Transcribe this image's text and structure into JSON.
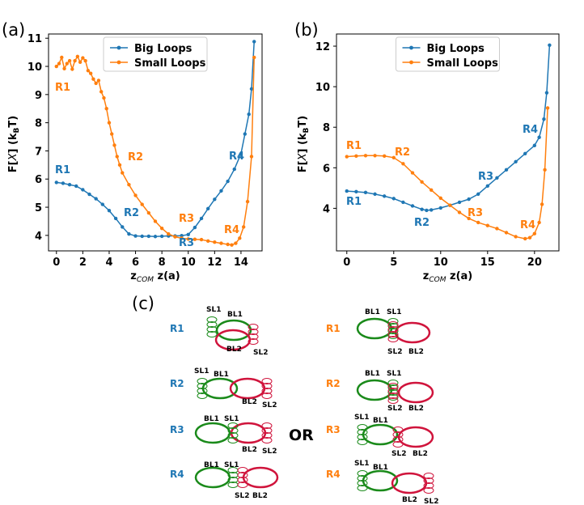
{
  "colors": {
    "big": "#1f77b4",
    "small": "#ff7f0e",
    "green": "#1a8a1a",
    "red": "#d0143c"
  },
  "legend": {
    "big": "Big Loops",
    "small": "Small Loops"
  },
  "panels": {
    "a": "(a)",
    "b": "(b)",
    "c": "(c)"
  },
  "or_label": "OR",
  "chart_data": [
    {
      "type": "line",
      "panel": "(a)",
      "xlabel": "z_COM z(a)",
      "ylabel": "F[X] (kBT)",
      "xlim": [
        -0.6,
        15.6
      ],
      "ylim": [
        3.45,
        11.15
      ],
      "xticks": [
        "0",
        "2",
        "4",
        "6",
        "8",
        "10",
        "12",
        "14"
      ],
      "yticks": [
        "4",
        "5",
        "6",
        "7",
        "8",
        "9",
        "10",
        "11"
      ],
      "series": [
        {
          "name": "Big Loops",
          "x": [
            0,
            0.5,
            1,
            1.5,
            2,
            2.5,
            3,
            3.5,
            4,
            4.5,
            5,
            5.5,
            6,
            6.5,
            7,
            7.5,
            8,
            8.5,
            9,
            9.5,
            10,
            10.5,
            11,
            11.5,
            12,
            12.5,
            13,
            13.5,
            14,
            14.3,
            14.6,
            14.8,
            15
          ],
          "y": [
            5.88,
            5.85,
            5.8,
            5.75,
            5.62,
            5.46,
            5.3,
            5.1,
            4.88,
            4.6,
            4.3,
            4.05,
            3.98,
            3.97,
            3.97,
            3.96,
            3.97,
            3.98,
            3.98,
            3.99,
            4.03,
            4.28,
            4.6,
            4.95,
            5.28,
            5.58,
            5.92,
            6.35,
            6.9,
            7.6,
            8.3,
            9.2,
            10.88
          ]
        },
        {
          "name": "Small Loops",
          "x": [
            0,
            0.2,
            0.4,
            0.6,
            0.8,
            1,
            1.2,
            1.4,
            1.6,
            1.8,
            2,
            2.2,
            2.4,
            2.6,
            2.8,
            3,
            3.2,
            3.4,
            3.6,
            3.8,
            4,
            4.2,
            4.4,
            4.6,
            4.8,
            5,
            5.5,
            6,
            6.5,
            7,
            7.5,
            8,
            8.5,
            9,
            9.5,
            10,
            10.5,
            11,
            11.5,
            12,
            12.5,
            13,
            13.3,
            13.6,
            13.9,
            14.2,
            14.5,
            14.8,
            15
          ],
          "y": [
            10.0,
            10.1,
            10.32,
            9.92,
            10.1,
            10.2,
            9.9,
            10.2,
            10.35,
            10.15,
            10.3,
            10.2,
            9.85,
            9.75,
            9.55,
            9.4,
            9.5,
            9.1,
            8.88,
            8.5,
            8.0,
            7.6,
            7.2,
            6.8,
            6.5,
            6.22,
            5.8,
            5.42,
            5.1,
            4.8,
            4.5,
            4.25,
            4.05,
            3.95,
            3.9,
            3.87,
            3.86,
            3.85,
            3.8,
            3.76,
            3.72,
            3.68,
            3.66,
            3.72,
            3.9,
            4.3,
            5.2,
            6.8,
            10.32
          ]
        }
      ],
      "annotations": [
        {
          "text": "R1",
          "series": "Big Loops"
        },
        {
          "text": "R2",
          "series": "Big Loops"
        },
        {
          "text": "R3",
          "series": "Big Loops"
        },
        {
          "text": "R4",
          "series": "Big Loops"
        },
        {
          "text": "R1",
          "series": "Small Loops"
        },
        {
          "text": "R2",
          "series": "Small Loops"
        },
        {
          "text": "R3",
          "series": "Small Loops"
        },
        {
          "text": "R4",
          "series": "Small Loops"
        }
      ],
      "legend": "top-center"
    },
    {
      "type": "line",
      "panel": "(b)",
      "xlabel": "z_COM z(a)",
      "ylabel": "F[X] (kBT)",
      "xlim": [
        -1.1,
        22.6
      ],
      "ylim": [
        1.9,
        12.6
      ],
      "xticks": [
        "0",
        "5",
        "10",
        "15",
        "20"
      ],
      "yticks": [
        "4",
        "6",
        "8",
        "10",
        "12"
      ],
      "series": [
        {
          "name": "Big Loops",
          "x": [
            0,
            1,
            2,
            3,
            4,
            5,
            6,
            7,
            8,
            8.5,
            9,
            10,
            11,
            12,
            13,
            14,
            15,
            16,
            17,
            18,
            19,
            20,
            20.5,
            21,
            21.3,
            21.6
          ],
          "y": [
            4.85,
            4.82,
            4.78,
            4.7,
            4.6,
            4.48,
            4.3,
            4.12,
            3.95,
            3.9,
            3.92,
            4.02,
            4.15,
            4.3,
            4.45,
            4.7,
            5.1,
            5.5,
            5.9,
            6.3,
            6.7,
            7.1,
            7.5,
            8.4,
            9.7,
            12.05
          ]
        },
        {
          "name": "Small Loops",
          "x": [
            0,
            1,
            2,
            3,
            4,
            5,
            6,
            7,
            8,
            9,
            10,
            11,
            12,
            13,
            14,
            15,
            16,
            17,
            18,
            19,
            19.5,
            20,
            20.5,
            20.8,
            21.1,
            21.4
          ],
          "y": [
            6.55,
            6.58,
            6.6,
            6.6,
            6.58,
            6.5,
            6.2,
            5.75,
            5.3,
            4.9,
            4.5,
            4.15,
            3.8,
            3.5,
            3.3,
            3.15,
            3.0,
            2.8,
            2.6,
            2.5,
            2.55,
            2.75,
            3.3,
            4.2,
            5.9,
            8.95
          ]
        }
      ],
      "annotations": [
        {
          "text": "R1",
          "series": "Big Loops"
        },
        {
          "text": "R2",
          "series": "Big Loops"
        },
        {
          "text": "R3",
          "series": "Big Loops"
        },
        {
          "text": "R4",
          "series": "Big Loops"
        },
        {
          "text": "R1",
          "series": "Small Loops"
        },
        {
          "text": "R2",
          "series": "Small Loops"
        },
        {
          "text": "R3",
          "series": "Small Loops"
        },
        {
          "text": "R4",
          "series": "Small Loops"
        }
      ],
      "legend": "top-center"
    }
  ],
  "schematics": {
    "left": [
      {
        "row": "R1",
        "labels": [
          "SL1",
          "BL1",
          "BL2",
          "SL2"
        ]
      },
      {
        "row": "R2",
        "labels": [
          "SL1",
          "BL1",
          "BL2",
          "SL2"
        ]
      },
      {
        "row": "R3",
        "labels": [
          "BL1",
          "SL1",
          "BL2",
          "SL2"
        ]
      },
      {
        "row": "R4",
        "labels": [
          "BL1",
          "SL1",
          "SL2",
          "BL2"
        ]
      }
    ],
    "right": [
      {
        "row": "R1",
        "labels": [
          "BL1",
          "SL1",
          "SL2",
          "BL2"
        ]
      },
      {
        "row": "R2",
        "labels": [
          "BL1",
          "SL1",
          "SL2",
          "BL2"
        ]
      },
      {
        "row": "R3",
        "labels": [
          "SL1",
          "BL1",
          "SL2",
          "BL2"
        ]
      },
      {
        "row": "R4",
        "labels": [
          "SL1",
          "BL1",
          "BL2",
          "SL2"
        ]
      }
    ]
  }
}
